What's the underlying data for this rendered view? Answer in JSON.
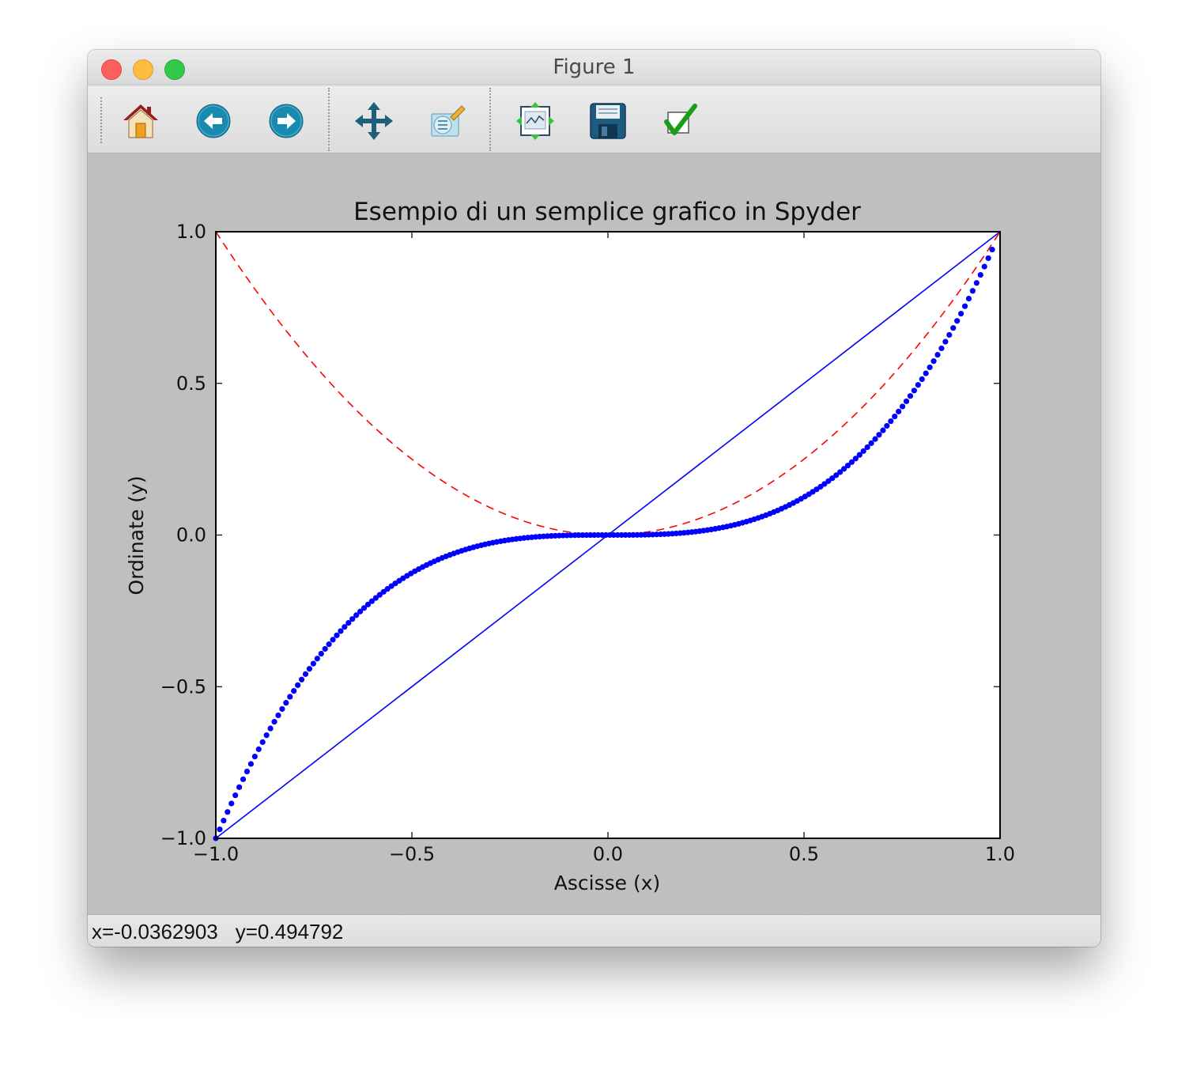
{
  "window": {
    "title": "Figure 1"
  },
  "toolbar": {
    "buttons": [
      {
        "icon": "home-icon",
        "tooltip": "Home"
      },
      {
        "icon": "back-arrow-icon",
        "tooltip": "Back"
      },
      {
        "icon": "forward-arrow-icon",
        "tooltip": "Forward"
      },
      {
        "icon": "pan-icon",
        "tooltip": "Pan"
      },
      {
        "icon": "zoom-icon",
        "tooltip": "Zoom"
      },
      {
        "icon": "subplots-icon",
        "tooltip": "Subplots"
      },
      {
        "icon": "save-icon",
        "tooltip": "Save"
      },
      {
        "icon": "customize-icon",
        "tooltip": "Customize"
      }
    ]
  },
  "status": {
    "x": "x=-0.0362903",
    "y": "y=0.494792"
  },
  "colors": {
    "blue": "#0000ff",
    "red": "#ff0000",
    "background": "#bfbfbf"
  },
  "chart_data": {
    "type": "line",
    "title": "Esempio di un semplice grafico in Spyder",
    "xlabel": "Ascisse (x)",
    "ylabel": "Ordinate (y)",
    "xlim": [
      -1.0,
      1.0
    ],
    "ylim": [
      -1.0,
      1.0
    ],
    "xticks": [
      -1.0,
      -0.5,
      0.0,
      0.5,
      1.0
    ],
    "yticks": [
      -1.0,
      -0.5,
      0.0,
      0.5,
      1.0
    ],
    "xtick_labels": [
      "−1.0",
      "−0.5",
      "0.0",
      "0.5",
      "1.0"
    ],
    "ytick_labels": [
      "−1.0",
      "−0.5",
      "0.0",
      "0.5",
      "1.0"
    ],
    "grid": false,
    "series": [
      {
        "style": "solid",
        "color": "#0000ff",
        "function": "y = x",
        "x": [
          -1.0,
          1.0
        ],
        "y": [
          -1.0,
          1.0
        ]
      },
      {
        "style": "dashed",
        "color": "#ff0000",
        "function": "y = x^2",
        "x_range": [
          -1.0,
          1.0
        ],
        "num_points": 100
      },
      {
        "style": "dots",
        "color": "#0000ff",
        "function": "y = x^3",
        "x_range": [
          -1.0,
          0.98
        ],
        "num_points": 200
      }
    ]
  }
}
